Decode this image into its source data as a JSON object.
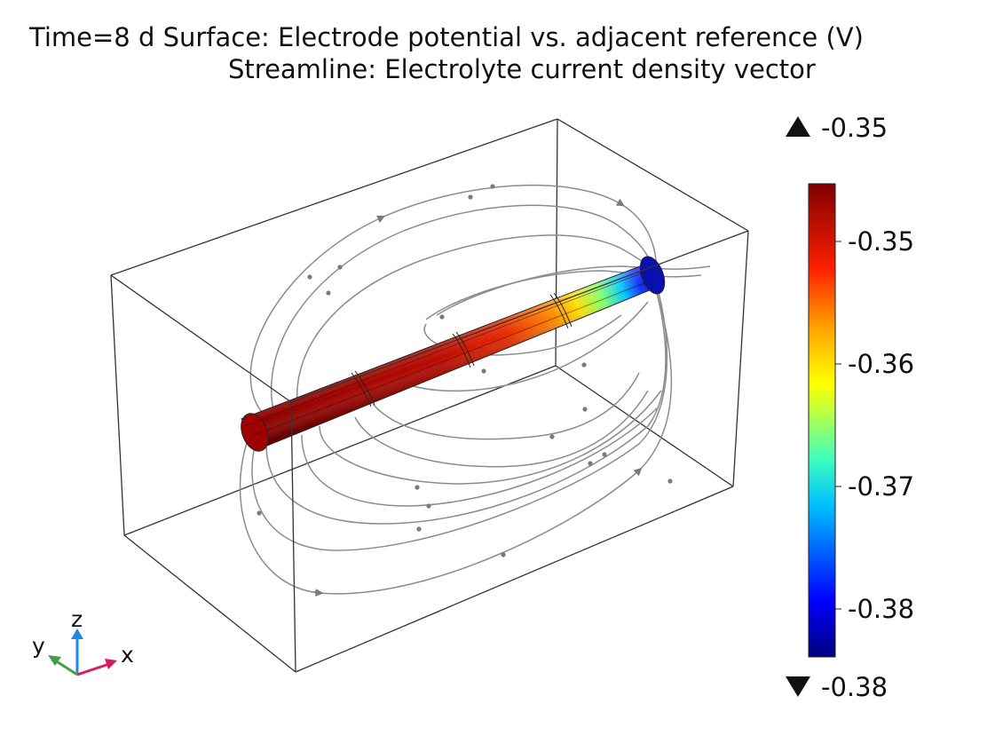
{
  "title": {
    "line1": "Time=8 d Surface: Electrode potential vs. adjacent reference (V)",
    "line2": "Streamline: Electrolyte current density vector"
  },
  "colorbar": {
    "max_label": "-0.35",
    "min_label": "-0.38",
    "ticks": [
      "-0.35",
      "-0.36",
      "-0.37",
      "-0.38"
    ],
    "colormap": "rainbow",
    "colors": [
      "#00007f",
      "#0000ff",
      "#00bfff",
      "#7fff7f",
      "#ffff00",
      "#ff7f00",
      "#ff0000",
      "#7f0000"
    ]
  },
  "axes_triad": {
    "x_label": "x",
    "y_label": "y",
    "z_label": "z",
    "x_color": "#d81b60",
    "y_color": "#43a047",
    "z_color": "#1e88e5"
  },
  "streamline_color": "#8a8a8a",
  "box_color": "#333333"
}
